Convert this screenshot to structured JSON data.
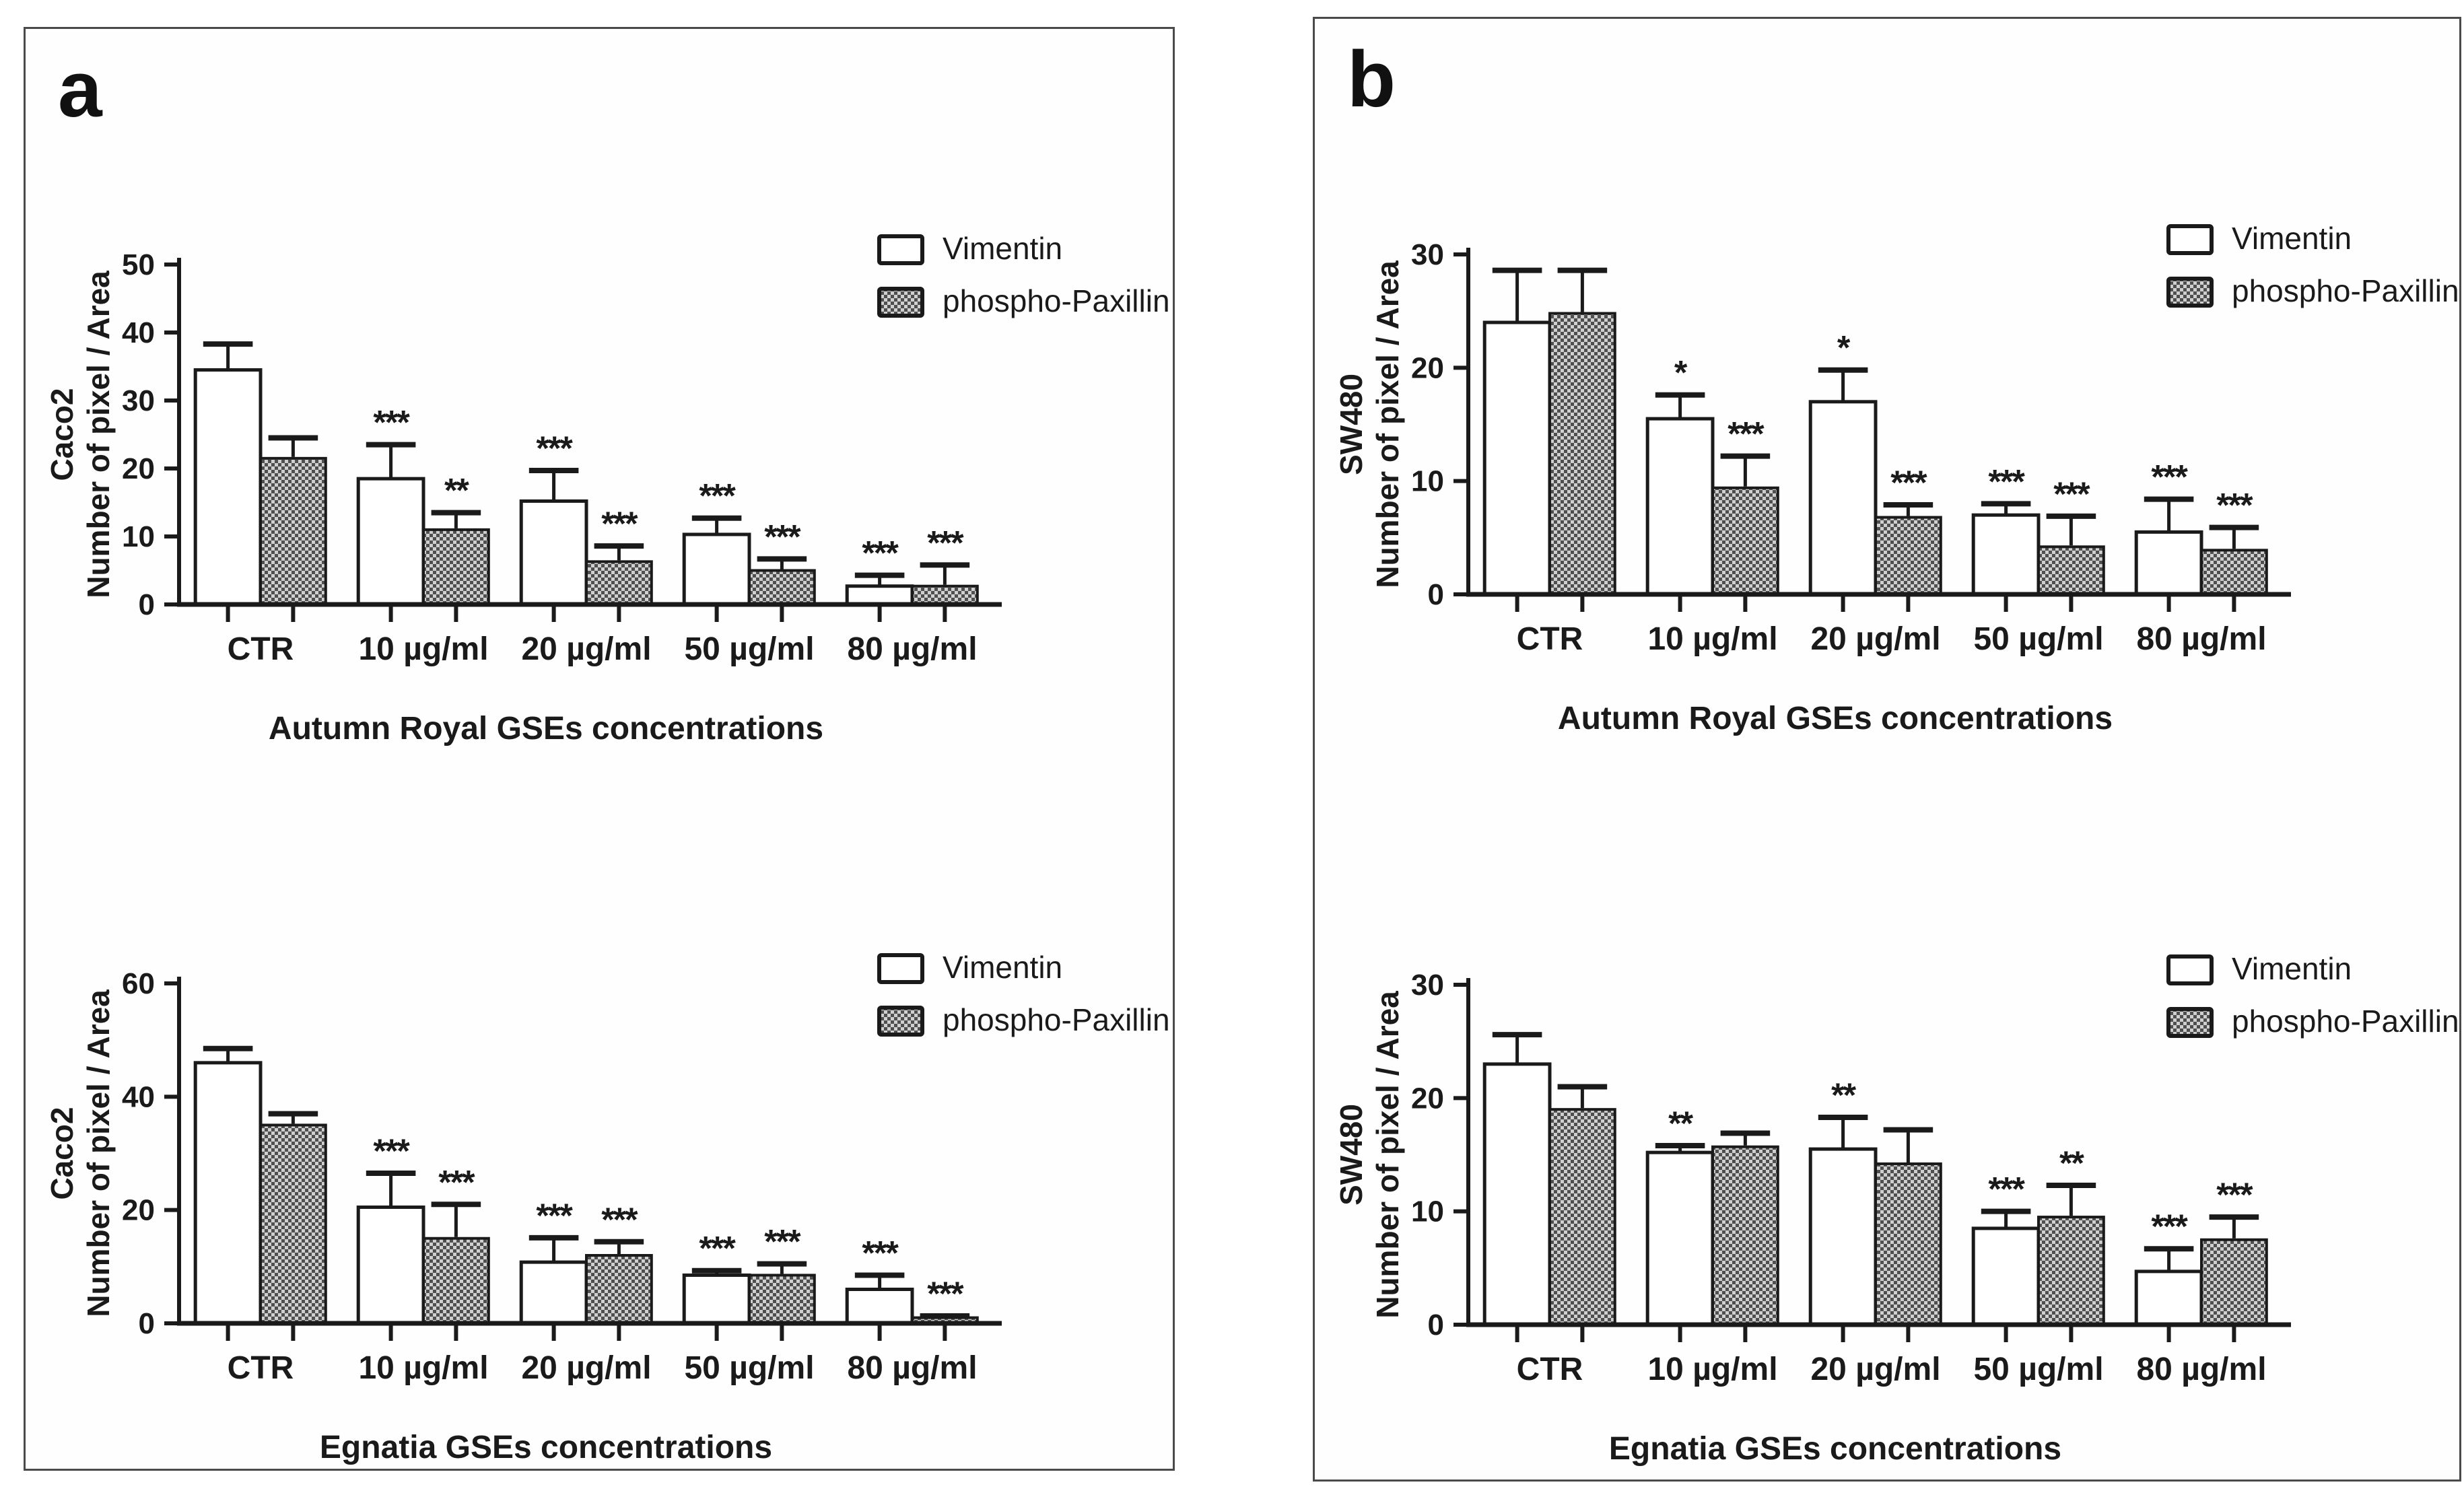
{
  "figure": {
    "panels": [
      {
        "letter": "a",
        "cell_line": "Caco2"
      },
      {
        "letter": "b",
        "cell_line": "SW480"
      }
    ]
  },
  "legend": {
    "items": [
      {
        "label": "Vimentin",
        "fill": "white"
      },
      {
        "label": "phospho-Paxillin",
        "fill": "checker"
      }
    ]
  },
  "colors": {
    "axis": "#1a1a1a",
    "text": "#1a1a1a",
    "bar_outline": "#1a1a1a",
    "vimentin_fill": "#ffffff",
    "checker_dark": "#4f4f4f",
    "checker_light": "#cfcfcf",
    "panel_border": "#4a4a4a"
  },
  "chart_data": [
    {
      "type": "bar",
      "panel": "a",
      "ylabel_line1": "Caco2",
      "ylabel_line2": "Number of pixel / Area",
      "xlabel": "Autumn Royal GSEs concentrations",
      "categories": [
        "CTR",
        "10 µg/ml",
        "20 µg/ml",
        "50 µg/ml",
        "80 µg/ml"
      ],
      "ylim": [
        0,
        50
      ],
      "yticks": [
        0,
        10,
        20,
        30,
        40,
        50
      ],
      "grid": false,
      "legend_position": "top-right",
      "series": [
        {
          "name": "Vimentin",
          "values": [
            34.5,
            18.5,
            15.2,
            10.3,
            2.7
          ],
          "errors": [
            3.8,
            5.0,
            4.5,
            2.4,
            1.6
          ],
          "sig": [
            "",
            "***",
            "***",
            "***",
            "***"
          ]
        },
        {
          "name": "phospho-Paxillin",
          "values": [
            21.5,
            11.0,
            6.3,
            5.0,
            2.7
          ],
          "errors": [
            3.0,
            2.5,
            2.3,
            1.7,
            3.1
          ],
          "sig": [
            "",
            "**",
            "***",
            "***",
            "***"
          ]
        }
      ]
    },
    {
      "type": "bar",
      "panel": "a",
      "ylabel_line1": "Caco2",
      "ylabel_line2": "Number of pixel / Area",
      "xlabel": "Egnatia GSEs concentrations",
      "categories": [
        "CTR",
        "10 µg/ml",
        "20 µg/ml",
        "50 µg/ml",
        "80 µg/ml"
      ],
      "ylim": [
        0,
        60
      ],
      "yticks": [
        0,
        20,
        40,
        60
      ],
      "grid": false,
      "legend_position": "top-right",
      "series": [
        {
          "name": "Vimentin",
          "values": [
            46.0,
            20.5,
            10.8,
            8.5,
            6.0
          ],
          "errors": [
            2.5,
            6.0,
            4.3,
            0.8,
            2.5
          ],
          "sig": [
            "",
            "***",
            "***",
            "***",
            "***"
          ]
        },
        {
          "name": "phospho-Paxillin",
          "values": [
            35.0,
            15.0,
            12.0,
            8.5,
            1.0
          ],
          "errors": [
            2.0,
            6.0,
            2.4,
            2.0,
            0.3
          ],
          "sig": [
            "",
            "***",
            "***",
            "***",
            "***"
          ]
        }
      ]
    },
    {
      "type": "bar",
      "panel": "b",
      "ylabel_line1": "SW480",
      "ylabel_line2": "Number of pixel / Area",
      "xlabel": "Autumn Royal GSEs concentrations",
      "categories": [
        "CTR",
        "10 µg/ml",
        "20 µg/ml",
        "50 µg/ml",
        "80 µg/ml"
      ],
      "ylim": [
        0,
        30
      ],
      "yticks": [
        0,
        10,
        20,
        30
      ],
      "grid": false,
      "legend_position": "top-right",
      "series": [
        {
          "name": "Vimentin",
          "values": [
            24.0,
            15.5,
            17.0,
            7.0,
            5.5
          ],
          "errors": [
            4.6,
            2.1,
            2.8,
            1.0,
            2.9
          ],
          "sig": [
            "",
            "*",
            "*",
            "***",
            "***"
          ]
        },
        {
          "name": "phospho-Paxillin",
          "values": [
            24.8,
            9.4,
            6.8,
            4.2,
            3.9
          ],
          "errors": [
            3.8,
            2.8,
            1.1,
            2.7,
            2.0
          ],
          "sig": [
            "",
            "***",
            "***",
            "***",
            "***"
          ]
        }
      ]
    },
    {
      "type": "bar",
      "panel": "b",
      "ylabel_line1": "SW480",
      "ylabel_line2": "Number of pixel / Area",
      "xlabel": "Egnatia GSEs concentrations",
      "categories": [
        "CTR",
        "10 µg/ml",
        "20 µg/ml",
        "50 µg/ml",
        "80 µg/ml"
      ],
      "ylim": [
        0,
        30
      ],
      "yticks": [
        0,
        10,
        20,
        30
      ],
      "grid": false,
      "legend_position": "top-right",
      "series": [
        {
          "name": "Vimentin",
          "values": [
            23.0,
            15.2,
            15.5,
            8.5,
            4.7
          ],
          "errors": [
            2.6,
            0.6,
            2.8,
            1.5,
            2.0
          ],
          "sig": [
            "",
            "**",
            "**",
            "***",
            "***"
          ]
        },
        {
          "name": "phospho-Paxillin",
          "values": [
            19.0,
            15.7,
            14.2,
            9.5,
            7.5
          ],
          "errors": [
            2.0,
            1.2,
            3.0,
            2.8,
            2.0
          ],
          "sig": [
            "",
            "",
            "",
            "**",
            "***"
          ]
        }
      ]
    }
  ]
}
